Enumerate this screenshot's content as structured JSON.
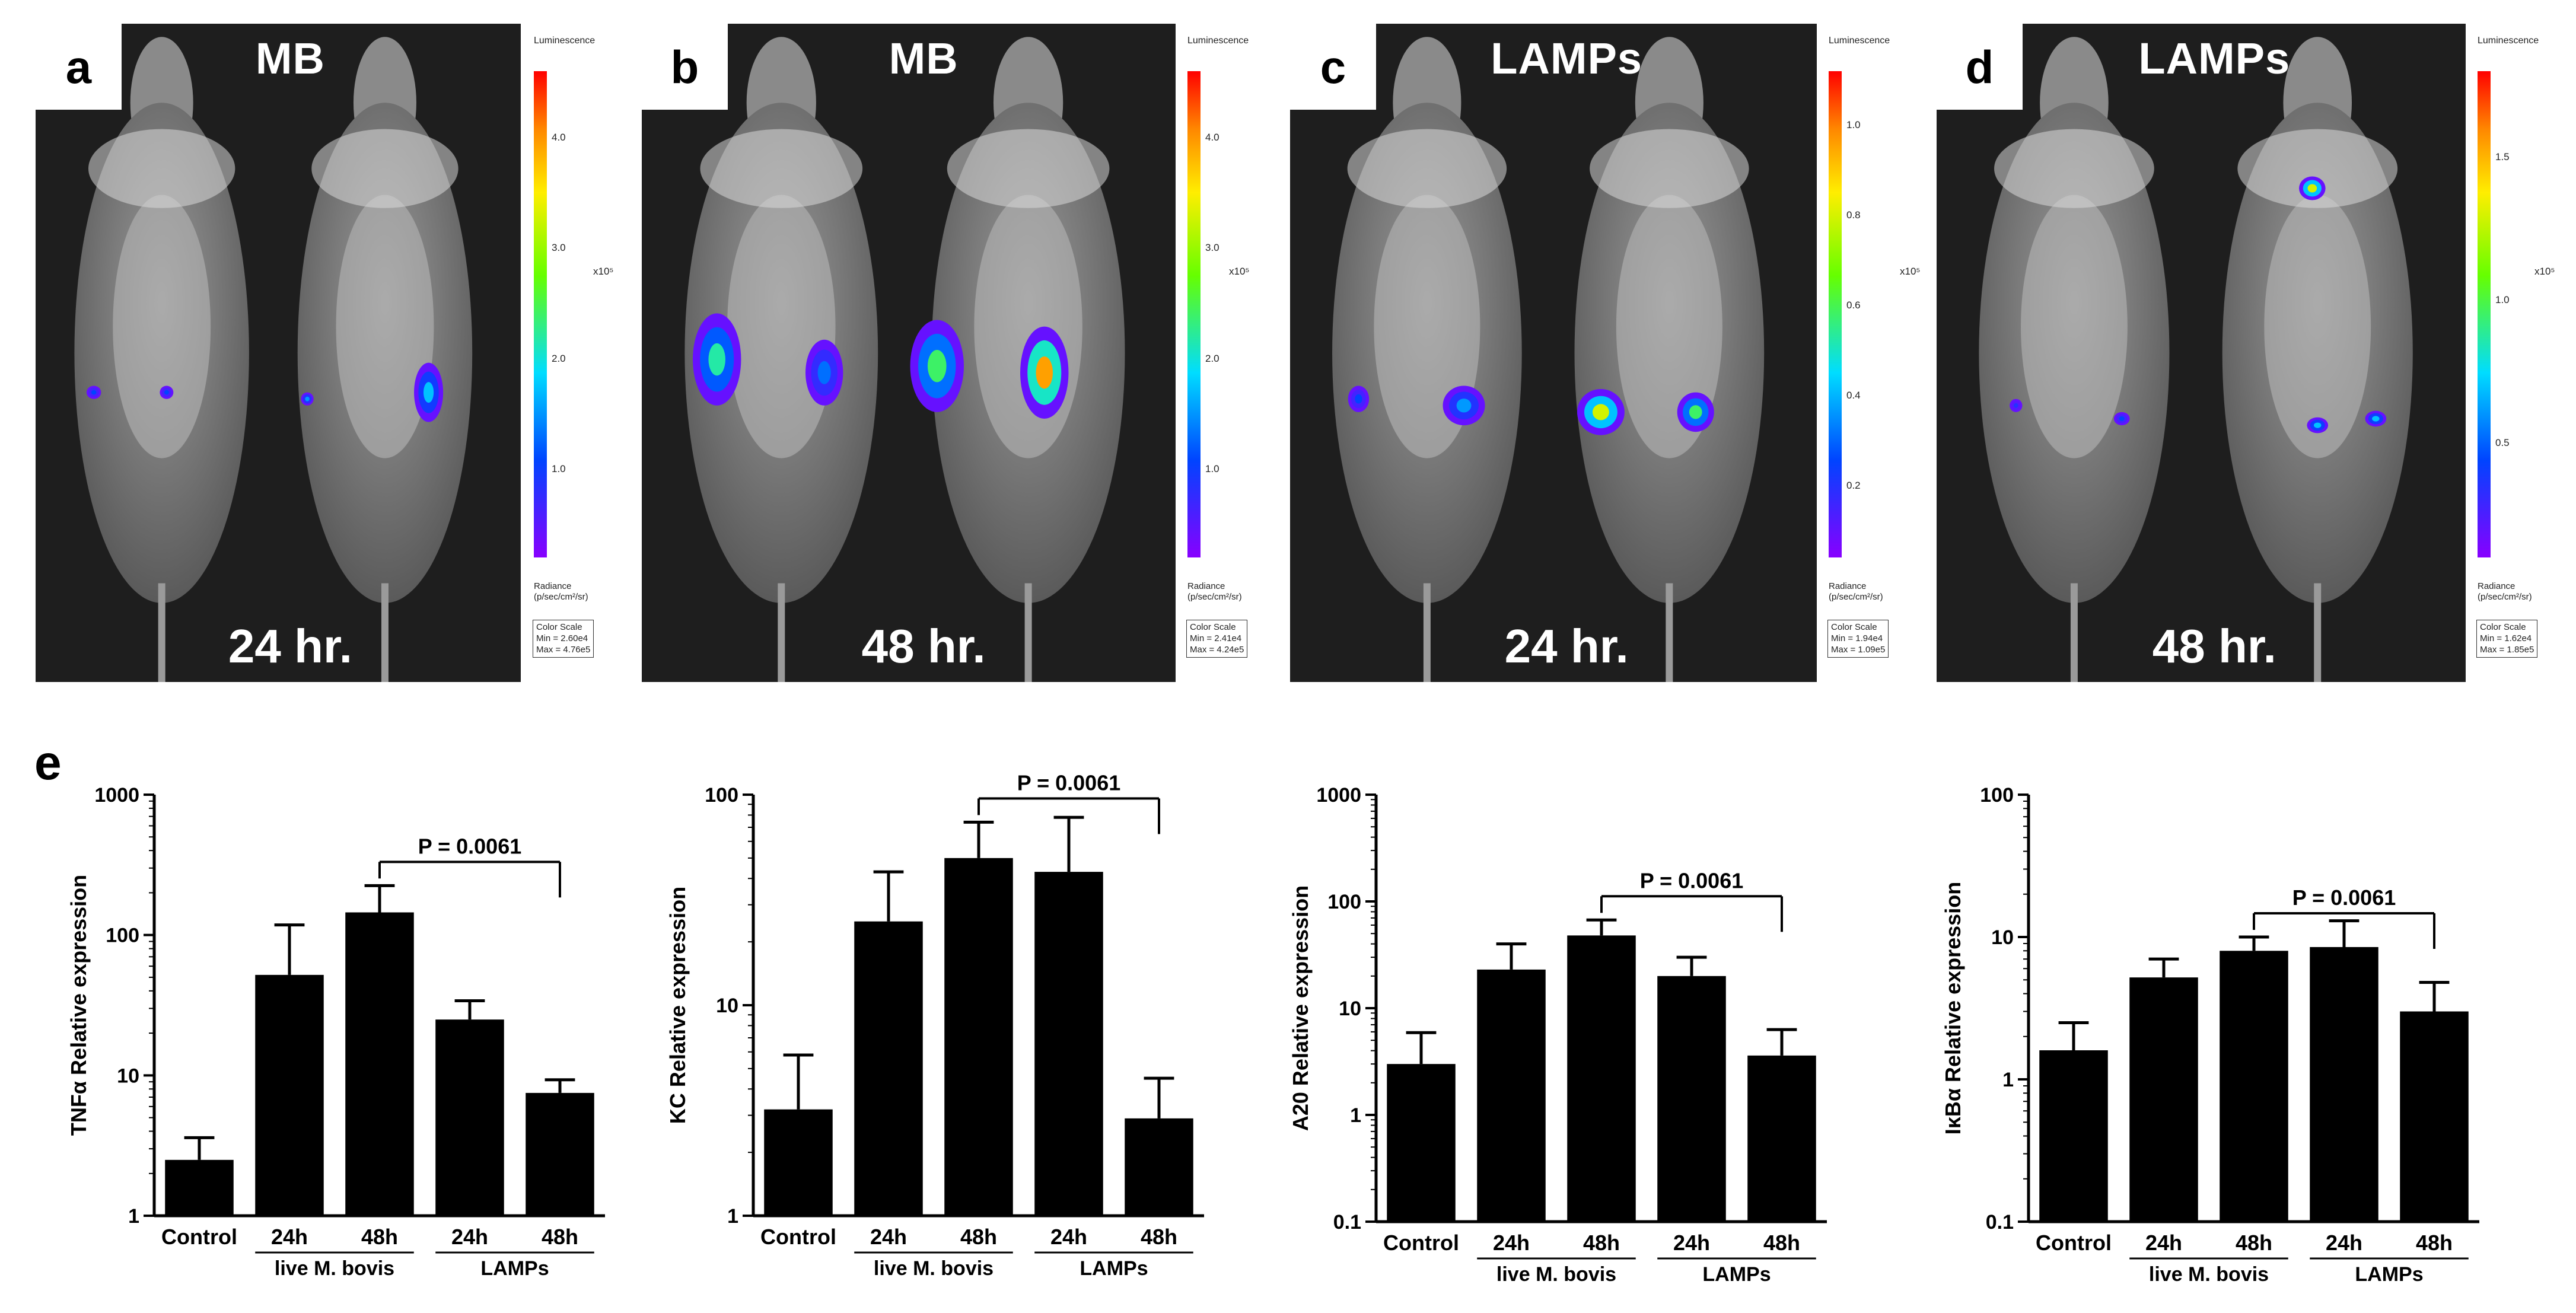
{
  "panels": [
    {
      "label": "a",
      "title": "MB",
      "time": "24 hr.",
      "scale": {
        "title": "Luminescence",
        "ticks": [
          "4.0",
          "3.0",
          "2.0",
          "1.0"
        ],
        "exp": "x10⁵",
        "rad1": "Radiance",
        "rad2": "(p/sec/cm²/sr)",
        "box1": "Color Scale",
        "box2": "Min = 2.60e4",
        "box3": "Max = 4.76e5"
      }
    },
    {
      "label": "b",
      "title": "MB",
      "time": "48 hr.",
      "scale": {
        "title": "Luminescence",
        "ticks": [
          "4.0",
          "3.0",
          "2.0",
          "1.0"
        ],
        "exp": "x10⁵",
        "rad1": "Radiance",
        "rad2": "(p/sec/cm²/sr)",
        "box1": "Color Scale",
        "box2": "Min = 2.41e4",
        "box3": "Max = 4.24e5"
      }
    },
    {
      "label": "c",
      "title": "LAMPs",
      "time": "24 hr.",
      "scale": {
        "title": "Luminescence",
        "ticks": [
          "1.0",
          "0.8",
          "0.6",
          "0.4",
          "0.2"
        ],
        "exp": "x10⁵",
        "rad1": "Radiance",
        "rad2": "(p/sec/cm²/sr)",
        "box1": "Color Scale",
        "box2": "Min = 1.94e4",
        "box3": "Max = 1.09e5"
      }
    },
    {
      "label": "d",
      "title": "LAMPs",
      "time": "48 hr.",
      "scale": {
        "title": "Luminescence",
        "ticks": [
          "1.5",
          "1.0",
          "0.5"
        ],
        "exp": "x10⁵",
        "rad1": "Radiance",
        "rad2": "(p/sec/cm²/sr)",
        "box1": "Color Scale",
        "box2": "Min = 1.62e4",
        "box3": "Max = 1.85e5"
      }
    }
  ],
  "e_label": "e",
  "chart_data": [
    {
      "type": "bar",
      "scale": "log",
      "ylabel": "TNFα Relative expression",
      "ylim": [
        1,
        1000
      ],
      "yticks": [
        "1",
        "10",
        "100",
        "1000"
      ],
      "categories": [
        "Control",
        "24h",
        "48h",
        "24h",
        "48h"
      ],
      "values": [
        2.5,
        52,
        145,
        25,
        7.5
      ],
      "errors": [
        3.6,
        118,
        225,
        34,
        9.3
      ],
      "groups": [
        {
          "label": "live M. bovis"
        },
        {
          "label": "LAMPs"
        }
      ],
      "significance": {
        "text": "P = 0.0061",
        "from": 2,
        "to": 4
      }
    },
    {
      "type": "bar",
      "scale": "log",
      "ylabel": "KC Relative expression",
      "ylim": [
        1,
        100
      ],
      "yticks": [
        "1",
        "10",
        "100"
      ],
      "categories": [
        "Control",
        "24h",
        "48h",
        "24h",
        "48h"
      ],
      "values": [
        3.2,
        25,
        50,
        43,
        2.9
      ],
      "errors": [
        5.8,
        43,
        74,
        78,
        4.5
      ],
      "groups": [
        {
          "label": "live M. bovis"
        },
        {
          "label": "LAMPs"
        }
      ],
      "significance": {
        "text": "P = 0.0061",
        "from": 2,
        "to": 4
      }
    },
    {
      "type": "bar",
      "scale": "log",
      "ylabel": "A20 Relative expression",
      "ylim": [
        0.1,
        1000
      ],
      "yticks": [
        "0.1",
        "1",
        "10",
        "100",
        "1000"
      ],
      "categories": [
        "Control",
        "24h",
        "48h",
        "24h",
        "48h"
      ],
      "values": [
        3.0,
        23,
        48,
        20,
        3.6
      ],
      "errors": [
        5.9,
        40,
        67,
        30,
        6.3
      ],
      "groups": [
        {
          "label": "live M. bovis"
        },
        {
          "label": "LAMPs"
        }
      ],
      "significance": {
        "text": "P = 0.0061",
        "from": 2,
        "to": 4
      }
    },
    {
      "type": "bar",
      "scale": "log",
      "ylabel": "IκBα Relative expression",
      "ylim": [
        0.1,
        100
      ],
      "yticks": [
        "0.1",
        "1",
        "10",
        "100"
      ],
      "categories": [
        "Control",
        "24h",
        "48h",
        "24h",
        "48h"
      ],
      "values": [
        1.6,
        5.2,
        8,
        8.5,
        3.0
      ],
      "errors": [
        2.5,
        7,
        10,
        13,
        4.8
      ],
      "groups": [
        {
          "label": "live M. bovis"
        },
        {
          "label": "LAMPs"
        }
      ],
      "significance": {
        "text": "P = 0.0061",
        "from": 2,
        "to": 4
      }
    }
  ]
}
